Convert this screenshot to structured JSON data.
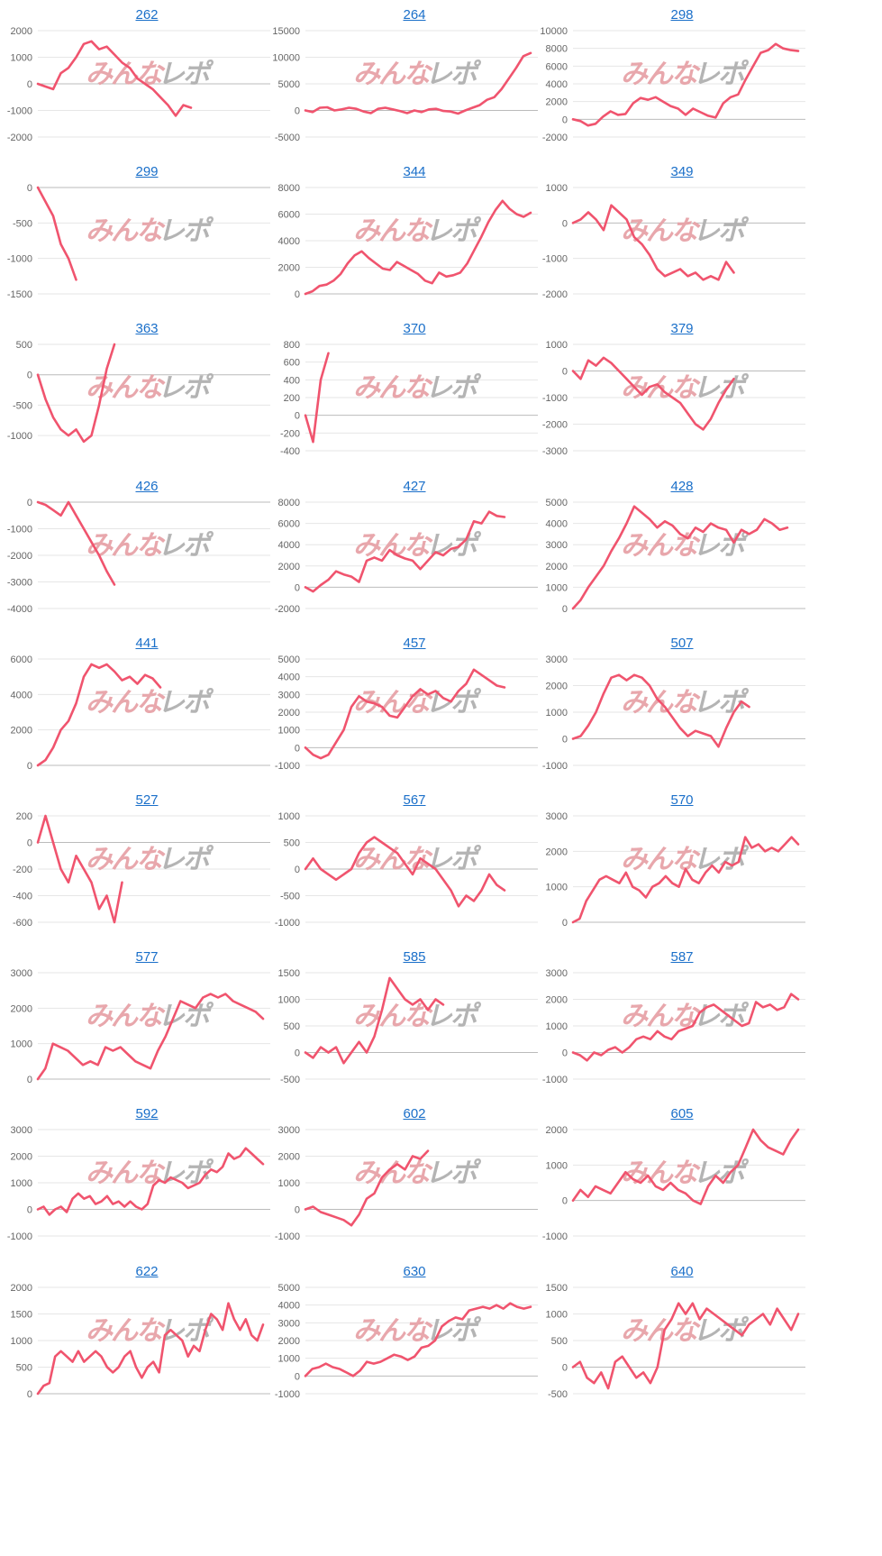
{
  "watermark": {
    "text_left": "みんな",
    "text_right": "レポ",
    "colors": [
      "#e7a3a8",
      "#b0b0b0"
    ]
  },
  "colors": {
    "line": "#f0546e",
    "link": "#1a6fc9",
    "grid": "#e6e6e6",
    "zero_line": "#bbbbbb",
    "tick_text": "#666666"
  },
  "chart_data": [
    {
      "type": "line",
      "title": "262",
      "yticks": [
        2000,
        1000,
        0,
        -1000,
        -2000
      ],
      "ylim": [
        -2000,
        2000
      ],
      "values": [
        0,
        -100,
        -200,
        400,
        600,
        1000,
        1500,
        1600,
        1300,
        1400,
        1100,
        800,
        600,
        200,
        0,
        -200,
        -500,
        -800,
        -1200,
        -800,
        -900
      ]
    },
    {
      "type": "line",
      "title": "264",
      "yticks": [
        15000,
        10000,
        5000,
        0,
        -5000
      ],
      "ylim": [
        -5000,
        15000
      ],
      "values": [
        0,
        -300,
        500,
        600,
        0,
        200,
        500,
        300,
        -200,
        -500,
        300,
        500,
        200,
        -100,
        -500,
        0,
        -300,
        200,
        300,
        -100,
        -200,
        -600,
        0,
        500,
        1000,
        2000,
        2500,
        4000,
        6000,
        8000,
        10200,
        10800
      ]
    },
    {
      "type": "line",
      "title": "298",
      "yticks": [
        10000,
        8000,
        6000,
        4000,
        2000,
        0,
        -2000
      ],
      "ylim": [
        -2000,
        10000
      ],
      "values": [
        0,
        -200,
        -700,
        -500,
        300,
        900,
        500,
        600,
        1800,
        2400,
        2200,
        2500,
        2000,
        1500,
        1200,
        500,
        1200,
        800,
        400,
        200,
        1800,
        2500,
        2800,
        4500,
        6000,
        7500,
        7800,
        8500,
        8000,
        7800,
        7700
      ]
    },
    {
      "type": "line",
      "title": "299",
      "yticks": [
        0,
        -500,
        -1000,
        -1500
      ],
      "ylim": [
        -1500,
        0
      ],
      "values": [
        0,
        -200,
        -400,
        -800,
        -1000,
        -1300
      ]
    },
    {
      "type": "line",
      "title": "344",
      "yticks": [
        8000,
        6000,
        4000,
        2000,
        0
      ],
      "ylim": [
        0,
        8000
      ],
      "values": [
        0,
        200,
        600,
        700,
        1000,
        1500,
        2300,
        2900,
        3200,
        2700,
        2300,
        1900,
        1800,
        2400,
        2100,
        1800,
        1500,
        1000,
        800,
        1600,
        1300,
        1400,
        1600,
        2300,
        3300,
        4300,
        5400,
        6300,
        7000,
        6400,
        6000,
        5800,
        6100
      ]
    },
    {
      "type": "line",
      "title": "349",
      "yticks": [
        1000,
        0,
        -1000,
        -2000
      ],
      "ylim": [
        -2000,
        1000
      ],
      "values": [
        0,
        100,
        300,
        100,
        -200,
        500,
        300,
        100,
        -400,
        -600,
        -900,
        -1300,
        -1500,
        -1400,
        -1300,
        -1500,
        -1400,
        -1600,
        -1500,
        -1600,
        -1100,
        -1400
      ]
    },
    {
      "type": "line",
      "title": "363",
      "yticks": [
        500,
        0,
        -500,
        -1000
      ],
      "ylim": [
        -1250,
        500
      ],
      "values": [
        0,
        -400,
        -700,
        -900,
        -1000,
        -900,
        -1100,
        -1000,
        -500,
        100,
        500
      ]
    },
    {
      "type": "line",
      "title": "370",
      "yticks": [
        800,
        600,
        400,
        200,
        0,
        -200,
        -400
      ],
      "ylim": [
        -400,
        800
      ],
      "values": [
        0,
        -300,
        400,
        700
      ]
    },
    {
      "type": "line",
      "title": "379",
      "yticks": [
        1000,
        0,
        -1000,
        -2000,
        -3000
      ],
      "ylim": [
        -3000,
        1000
      ],
      "values": [
        0,
        -300,
        400,
        200,
        500,
        300,
        0,
        -300,
        -600,
        -900,
        -600,
        -500,
        -800,
        -1000,
        -1200,
        -1600,
        -2000,
        -2200,
        -1800,
        -1200,
        -700,
        -300
      ]
    },
    {
      "type": "line",
      "title": "426",
      "yticks": [
        0,
        -1000,
        -2000,
        -3000,
        -4000
      ],
      "ylim": [
        -4000,
        0
      ],
      "values": [
        0,
        -100,
        -300,
        -500,
        0,
        -500,
        -1000,
        -1500,
        -2000,
        -2600,
        -3100
      ]
    },
    {
      "type": "line",
      "title": "427",
      "yticks": [
        8000,
        6000,
        4000,
        2000,
        0,
        -2000
      ],
      "ylim": [
        -2000,
        8000
      ],
      "values": [
        0,
        -400,
        200,
        700,
        1500,
        1200,
        1000,
        500,
        2500,
        2800,
        2500,
        3500,
        3000,
        2700,
        2500,
        1700,
        2500,
        3300,
        3000,
        3600,
        3800,
        4500,
        6200,
        6000,
        7100,
        6700,
        6600
      ]
    },
    {
      "type": "line",
      "title": "428",
      "yticks": [
        5000,
        4000,
        3000,
        2000,
        1000,
        0
      ],
      "ylim": [
        0,
        5000
      ],
      "values": [
        0,
        400,
        1000,
        1500,
        2000,
        2700,
        3300,
        4000,
        4800,
        4500,
        4200,
        3800,
        4100,
        3900,
        3500,
        3300,
        3800,
        3600,
        4000,
        3800,
        3700,
        3100,
        3700,
        3500,
        3700,
        4200,
        4000,
        3700,
        3800
      ]
    },
    {
      "type": "line",
      "title": "441",
      "yticks": [
        6000,
        4000,
        2000,
        0
      ],
      "ylim": [
        0,
        6000
      ],
      "values": [
        0,
        300,
        1000,
        2000,
        2500,
        3500,
        5000,
        5700,
        5500,
        5700,
        5300,
        4800,
        5000,
        4600,
        5100,
        4900,
        4400
      ]
    },
    {
      "type": "line",
      "title": "457",
      "yticks": [
        5000,
        4000,
        3000,
        2000,
        1000,
        0,
        -1000
      ],
      "ylim": [
        -1000,
        5000
      ],
      "values": [
        0,
        -400,
        -600,
        -400,
        300,
        1000,
        2300,
        2900,
        2600,
        2500,
        2300,
        1800,
        1700,
        2300,
        2900,
        3300,
        3000,
        3200,
        2800,
        2600,
        3200,
        3600,
        4400,
        4100,
        3800,
        3500,
        3400
      ]
    },
    {
      "type": "line",
      "title": "507",
      "yticks": [
        3000,
        2000,
        1000,
        0,
        -1000
      ],
      "ylim": [
        -1000,
        3000
      ],
      "values": [
        0,
        100,
        500,
        1000,
        1700,
        2300,
        2400,
        2200,
        2400,
        2300,
        2000,
        1500,
        1200,
        800,
        400,
        100,
        300,
        200,
        100,
        -300,
        400,
        1000,
        1400,
        1200
      ]
    },
    {
      "type": "line",
      "title": "527",
      "yticks": [
        200,
        0,
        -200,
        -400,
        -600
      ],
      "ylim": [
        -600,
        200
      ],
      "values": [
        0,
        200,
        0,
        -200,
        -300,
        -100,
        -200,
        -300,
        -500,
        -400,
        -600,
        -300
      ]
    },
    {
      "type": "line",
      "title": "567",
      "yticks": [
        1000,
        500,
        0,
        -500,
        -1000
      ],
      "ylim": [
        -1000,
        1000
      ],
      "values": [
        0,
        200,
        0,
        -100,
        -200,
        -100,
        0,
        300,
        500,
        600,
        500,
        400,
        300,
        100,
        -100,
        200,
        100,
        0,
        -200,
        -400,
        -700,
        -500,
        -600,
        -400,
        -100,
        -300,
        -400
      ]
    },
    {
      "type": "line",
      "title": "570",
      "yticks": [
        3000,
        2000,
        1000,
        0
      ],
      "ylim": [
        0,
        3000
      ],
      "values": [
        0,
        100,
        600,
        900,
        1200,
        1300,
        1200,
        1100,
        1400,
        1000,
        900,
        700,
        1000,
        1100,
        1300,
        1100,
        1000,
        1500,
        1200,
        1100,
        1400,
        1600,
        1400,
        1700,
        1600,
        1700,
        2400,
        2100,
        2200,
        2000,
        2100,
        2000,
        2200,
        2400,
        2200
      ]
    },
    {
      "type": "line",
      "title": "577",
      "yticks": [
        3000,
        2000,
        1000,
        0
      ],
      "ylim": [
        0,
        3000
      ],
      "values": [
        0,
        300,
        1000,
        900,
        800,
        600,
        400,
        500,
        400,
        900,
        800,
        900,
        700,
        500,
        400,
        300,
        800,
        1200,
        1700,
        2200,
        2100,
        2000,
        2300,
        2400,
        2300,
        2400,
        2200,
        2100,
        2000,
        1900,
        1700
      ]
    },
    {
      "type": "line",
      "title": "585",
      "yticks": [
        1500,
        1000,
        500,
        0,
        -500
      ],
      "ylim": [
        -500,
        1500
      ],
      "values": [
        0,
        -100,
        100,
        0,
        100,
        -200,
        0,
        200,
        0,
        300,
        800,
        1400,
        1200,
        1000,
        900,
        1000,
        800,
        1000,
        900
      ]
    },
    {
      "type": "line",
      "title": "587",
      "yticks": [
        3000,
        2000,
        1000,
        0,
        -1000
      ],
      "ylim": [
        -1000,
        3000
      ],
      "values": [
        0,
        -100,
        -300,
        0,
        -100,
        100,
        200,
        0,
        200,
        500,
        600,
        500,
        800,
        600,
        500,
        800,
        900,
        1000,
        1500,
        1700,
        1800,
        1600,
        1400,
        1200,
        1000,
        1100,
        1900,
        1700,
        1800,
        1600,
        1700,
        2200,
        2000
      ]
    },
    {
      "type": "line",
      "title": "592",
      "yticks": [
        3000,
        2000,
        1000,
        0,
        -1000
      ],
      "ylim": [
        -1000,
        3000
      ],
      "values": [
        0,
        100,
        -200,
        0,
        100,
        -100,
        400,
        600,
        400,
        500,
        200,
        300,
        500,
        200,
        300,
        100,
        300,
        100,
        0,
        200,
        900,
        1100,
        1000,
        1200,
        1100,
        1000,
        800,
        900,
        1000,
        1300,
        1500,
        1400,
        1600,
        2100,
        1900,
        2000,
        2300,
        2100,
        1900,
        1700
      ]
    },
    {
      "type": "line",
      "title": "602",
      "yticks": [
        3000,
        2000,
        1000,
        0,
        -1000
      ],
      "ylim": [
        -1000,
        3000
      ],
      "values": [
        0,
        100,
        -100,
        -200,
        -300,
        -400,
        -600,
        -200,
        400,
        600,
        1200,
        1500,
        1700,
        1500,
        2000,
        1900,
        2200
      ]
    },
    {
      "type": "line",
      "title": "605",
      "yticks": [
        2000,
        1000,
        0,
        -1000
      ],
      "ylim": [
        -1000,
        2000
      ],
      "values": [
        0,
        300,
        100,
        400,
        300,
        200,
        500,
        800,
        600,
        500,
        700,
        400,
        300,
        500,
        300,
        200,
        0,
        -100,
        400,
        700,
        500,
        800,
        1000,
        1500,
        2000,
        1700,
        1500,
        1400,
        1300,
        1700,
        2000
      ]
    },
    {
      "type": "line",
      "title": "622",
      "yticks": [
        2000,
        1500,
        1000,
        500,
        0
      ],
      "ylim": [
        0,
        2000
      ],
      "values": [
        0,
        150,
        200,
        700,
        800,
        700,
        600,
        800,
        600,
        700,
        800,
        700,
        500,
        400,
        500,
        700,
        800,
        500,
        300,
        500,
        600,
        400,
        1100,
        1200,
        1100,
        1000,
        700,
        900,
        800,
        1200,
        1500,
        1400,
        1200,
        1700,
        1400,
        1200,
        1400,
        1100,
        1000,
        1300
      ]
    },
    {
      "type": "line",
      "title": "630",
      "yticks": [
        5000,
        4000,
        3000,
        2000,
        1000,
        0,
        -1000
      ],
      "ylim": [
        -1000,
        5000
      ],
      "values": [
        0,
        400,
        500,
        700,
        500,
        400,
        200,
        0,
        300,
        800,
        700,
        800,
        1000,
        1200,
        1100,
        900,
        1100,
        1600,
        1700,
        2000,
        2800,
        3100,
        3300,
        3200,
        3700,
        3800,
        3900,
        3800,
        4000,
        3800,
        4100,
        3900,
        3800,
        3900
      ]
    },
    {
      "type": "line",
      "title": "640",
      "yticks": [
        1500,
        1000,
        500,
        0,
        -500
      ],
      "ylim": [
        -500,
        1500
      ],
      "values": [
        0,
        100,
        -200,
        -300,
        -100,
        -400,
        100,
        200,
        0,
        -200,
        -100,
        -300,
        0,
        700,
        900,
        1200,
        1000,
        1200,
        900,
        1100,
        1000,
        900,
        800,
        700,
        600,
        800,
        900,
        1000,
        800,
        1100,
        900,
        700,
        1000
      ]
    }
  ]
}
